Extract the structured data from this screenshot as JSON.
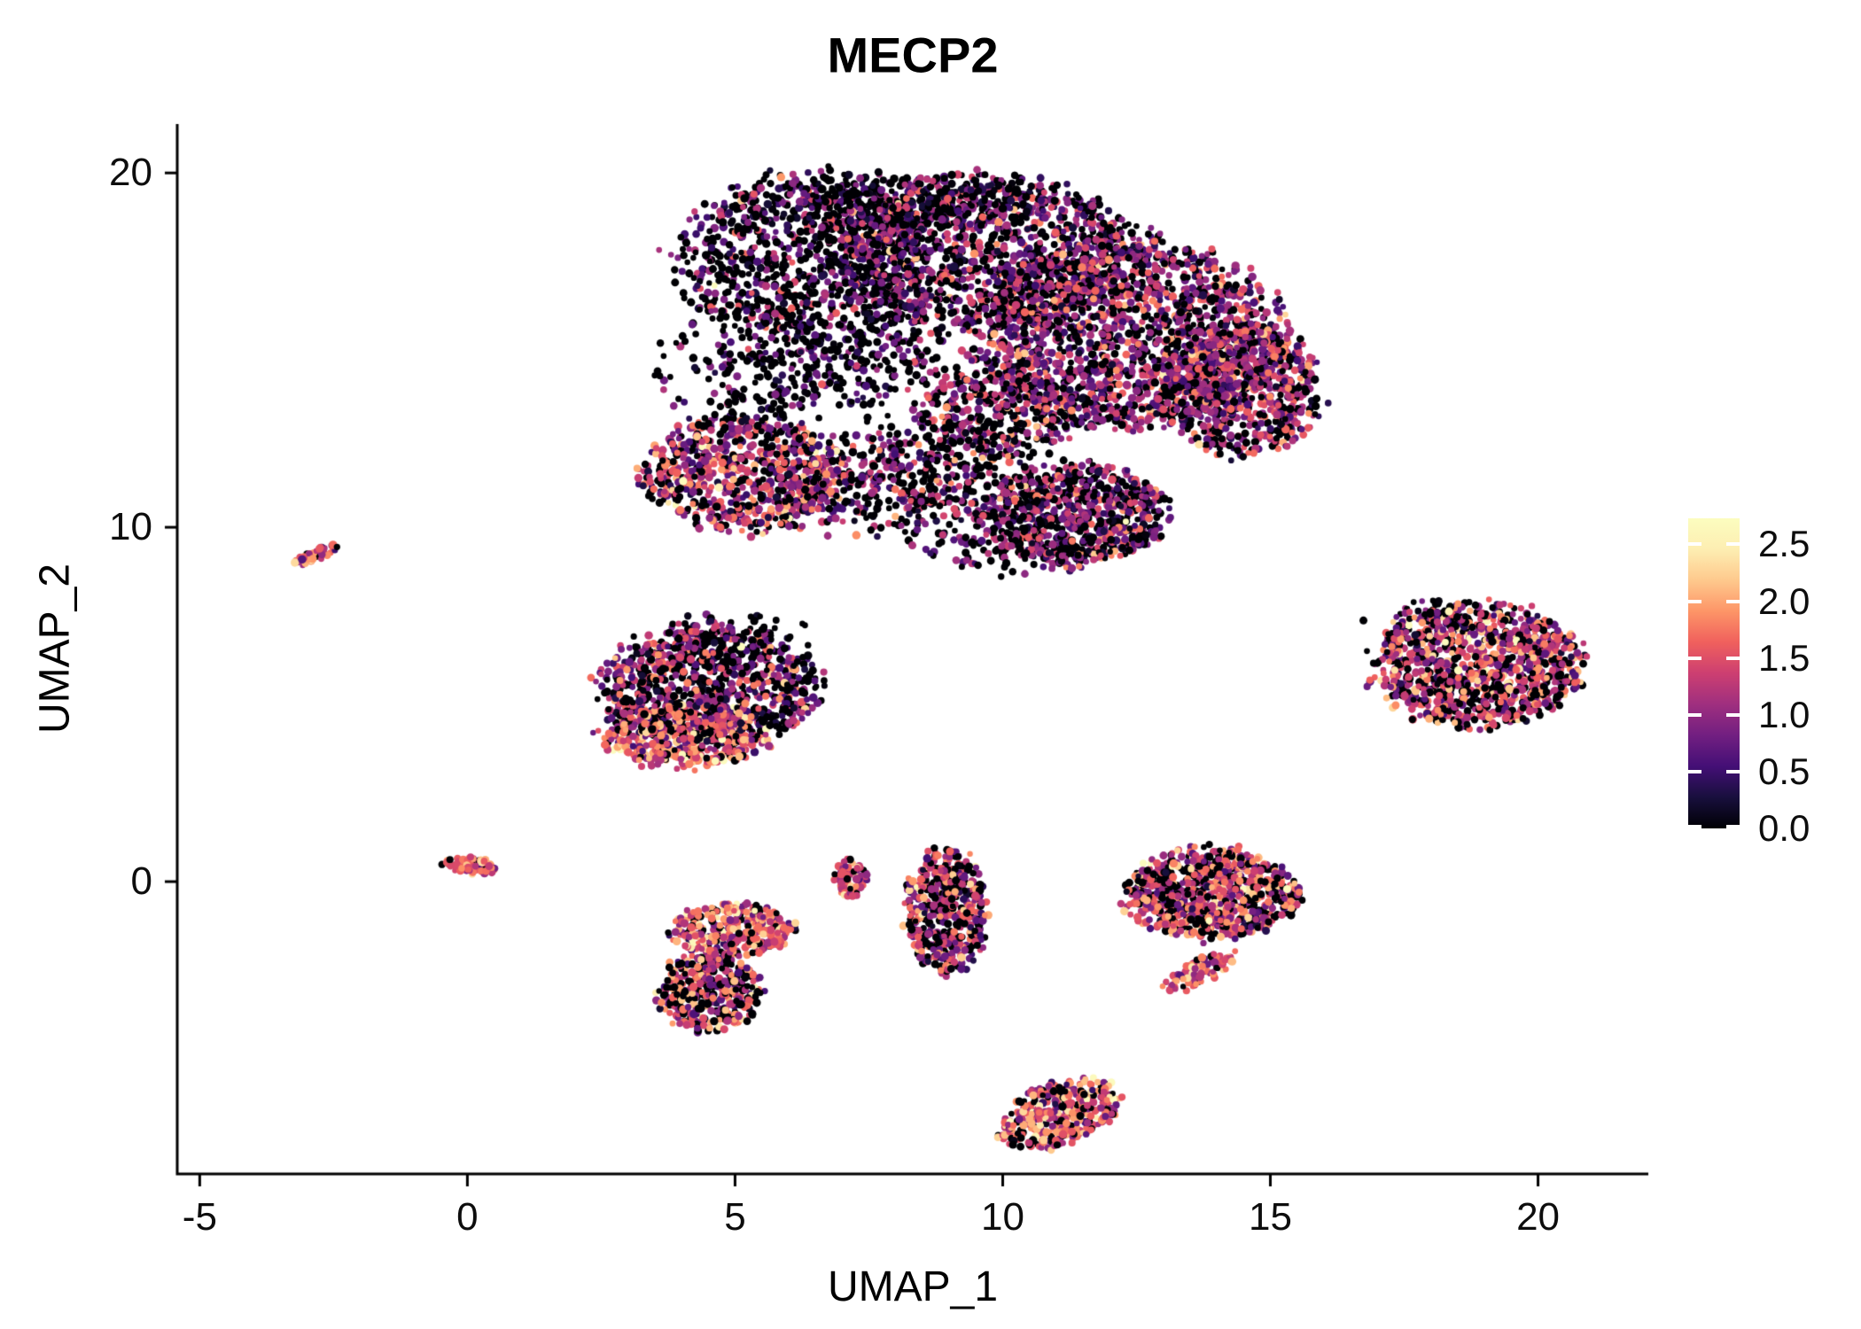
{
  "figure": {
    "background": "#ffffff",
    "text_color": "#000000",
    "axis_color": "#000000"
  },
  "chart_data": {
    "type": "scatter",
    "title": "MECP2",
    "xlabel": "UMAP_1",
    "ylabel": "UMAP_2",
    "xlim": [
      -5.42,
      22.06
    ],
    "ylim": [
      -8.25,
      21.38
    ],
    "grid": false,
    "x_ticks": [
      {
        "v": -5,
        "label": "-5"
      },
      {
        "v": 0,
        "label": "0"
      },
      {
        "v": 5,
        "label": "5"
      },
      {
        "v": 10,
        "label": "10"
      },
      {
        "v": 15,
        "label": "15"
      },
      {
        "v": 20,
        "label": "20"
      }
    ],
    "y_ticks": [
      {
        "v": 0,
        "label": "0"
      },
      {
        "v": 10,
        "label": "10"
      },
      {
        "v": 20,
        "label": "20"
      }
    ],
    "legend": {
      "position": "right",
      "scale_min": 0.0,
      "scale_max": 2.73,
      "ticks": [
        {
          "v": 2.5,
          "label": "2.5"
        },
        {
          "v": 2.0,
          "label": "2.0"
        },
        {
          "v": 1.5,
          "label": "1.5"
        },
        {
          "v": 1.0,
          "label": "1.0"
        },
        {
          "v": 0.5,
          "label": "0.5"
        },
        {
          "v": 0.0,
          "label": "0.0"
        }
      ],
      "colormap": "magma",
      "stops": [
        [
          0.0,
          "#000004"
        ],
        [
          0.1,
          "#180f3d"
        ],
        [
          0.2,
          "#440f76"
        ],
        [
          0.3,
          "#721f81"
        ],
        [
          0.4,
          "#9f2f7f"
        ],
        [
          0.5,
          "#cd3f71"
        ],
        [
          0.6,
          "#f0605d"
        ],
        [
          0.7,
          "#fd9567"
        ],
        [
          0.8,
          "#fec98d"
        ],
        [
          0.9,
          "#fdeeb2"
        ],
        [
          1.0,
          "#fcfdbf"
        ]
      ]
    },
    "points_total": 12885,
    "clusters": [
      {
        "name": "main-top-left",
        "cx": 6.3,
        "cy": 17.6,
        "rx": 2.4,
        "ry": 2.3,
        "rot": 0,
        "n": 850,
        "zero_frac": 0.52,
        "mean": 0.75,
        "sd": 0.5,
        "profile": "disk"
      },
      {
        "name": "main-top-rim",
        "cx": 8.2,
        "cy": 19.2,
        "rx": 2.2,
        "ry": 0.8,
        "rot": 0,
        "n": 300,
        "zero_frac": 0.55,
        "mean": 0.6,
        "sd": 0.45,
        "profile": "gauss"
      },
      {
        "name": "main-top-mid",
        "cx": 9.6,
        "cy": 17.8,
        "rx": 2.8,
        "ry": 2.1,
        "rot": 0,
        "n": 1200,
        "zero_frac": 0.36,
        "mean": 0.95,
        "sd": 0.5,
        "profile": "disk"
      },
      {
        "name": "main-right",
        "cx": 12.3,
        "cy": 15.5,
        "rx": 2.8,
        "ry": 2.7,
        "rot": 0,
        "n": 1700,
        "zero_frac": 0.28,
        "mean": 1.05,
        "sd": 0.5,
        "profile": "disk"
      },
      {
        "name": "main-right-lobe",
        "cx": 14.5,
        "cy": 13.9,
        "rx": 1.5,
        "ry": 1.8,
        "rot": 0,
        "n": 700,
        "zero_frac": 0.26,
        "mean": 1.15,
        "sd": 0.5,
        "profile": "disk"
      },
      {
        "name": "main-left-sparse",
        "cx": 5.6,
        "cy": 14.5,
        "rx": 1.8,
        "ry": 1.8,
        "rot": 0,
        "n": 260,
        "zero_frac": 0.6,
        "mean": 0.6,
        "sd": 0.4,
        "profile": "gauss"
      },
      {
        "name": "main-left-warm",
        "cx": 5.2,
        "cy": 11.5,
        "rx": 1.9,
        "ry": 1.6,
        "rot": 0,
        "n": 750,
        "zero_frac": 0.28,
        "mean": 1.25,
        "sd": 0.55,
        "profile": "disk"
      },
      {
        "name": "main-bottom-mid",
        "cx": 8.4,
        "cy": 11.3,
        "rx": 2.4,
        "ry": 1.6,
        "rot": 0,
        "n": 500,
        "zero_frac": 0.48,
        "mean": 0.95,
        "sd": 0.5,
        "profile": "gauss"
      },
      {
        "name": "main-bottom-lobe",
        "cx": 11.4,
        "cy": 10.4,
        "rx": 1.7,
        "ry": 1.4,
        "rot": 0,
        "n": 750,
        "zero_frac": 0.34,
        "mean": 0.95,
        "sd": 0.5,
        "profile": "disk"
      },
      {
        "name": "main-center-fill",
        "cx": 7.8,
        "cy": 15.0,
        "rx": 1.5,
        "ry": 1.5,
        "rot": 0,
        "n": 200,
        "zero_frac": 0.55,
        "mean": 0.7,
        "sd": 0.45,
        "profile": "gauss"
      },
      {
        "name": "main-bridge",
        "cx": 9.9,
        "cy": 13.2,
        "rx": 1.5,
        "ry": 1.2,
        "rot": 0,
        "n": 350,
        "zero_frac": 0.4,
        "mean": 1.0,
        "sd": 0.5,
        "profile": "disk"
      },
      {
        "name": "main-under-strays",
        "cx": 10.2,
        "cy": 9.3,
        "rx": 1.6,
        "ry": 0.6,
        "rot": 0,
        "n": 80,
        "zero_frac": 0.5,
        "mean": 0.8,
        "sd": 0.45,
        "profile": "gauss"
      },
      {
        "name": "streak-upper-left",
        "cx": -2.8,
        "cy": 9.25,
        "rx": 0.5,
        "ry": 0.15,
        "rot": 35,
        "n": 45,
        "zero_frac": 0.08,
        "mean": 1.5,
        "sd": 0.45,
        "profile": "disk"
      },
      {
        "name": "mid-left",
        "cx": 4.5,
        "cy": 5.5,
        "rx": 2.0,
        "ry": 1.7,
        "rot": 0,
        "n": 950,
        "zero_frac": 0.38,
        "mean": 1.05,
        "sd": 0.55,
        "profile": "disk"
      },
      {
        "name": "mid-left-warm",
        "cx": 4.1,
        "cy": 4.1,
        "rx": 1.6,
        "ry": 0.85,
        "rot": 0,
        "n": 420,
        "zero_frac": 0.12,
        "mean": 1.6,
        "sd": 0.5,
        "profile": "disk"
      },
      {
        "name": "mid-left-halo",
        "cx": 5.0,
        "cy": 6.9,
        "rx": 1.5,
        "ry": 0.7,
        "rot": 0,
        "n": 70,
        "zero_frac": 0.55,
        "mean": 0.7,
        "sd": 0.45,
        "profile": "gauss"
      },
      {
        "name": "right",
        "cx": 18.85,
        "cy": 6.1,
        "rx": 1.95,
        "ry": 1.7,
        "rot": 0,
        "n": 1050,
        "zero_frac": 0.3,
        "mean": 1.3,
        "sd": 0.55,
        "profile": "disk"
      },
      {
        "name": "right-halo",
        "cx": 17.9,
        "cy": 7.4,
        "rx": 1.0,
        "ry": 0.6,
        "rot": 0,
        "n": 60,
        "zero_frac": 0.6,
        "mean": 0.8,
        "sd": 0.45,
        "profile": "gauss"
      },
      {
        "name": "origin-small",
        "cx": 0.05,
        "cy": 0.45,
        "rx": 0.55,
        "ry": 0.22,
        "rot": -8,
        "n": 70,
        "zero_frac": 0.08,
        "mean": 1.5,
        "sd": 0.4,
        "profile": "disk"
      },
      {
        "name": "lower-left-top",
        "cx": 4.95,
        "cy": -1.35,
        "rx": 1.15,
        "ry": 0.75,
        "rot": 0,
        "n": 330,
        "zero_frac": 0.15,
        "mean": 1.6,
        "sd": 0.5,
        "profile": "disk"
      },
      {
        "name": "lower-left-bottom",
        "cx": 4.55,
        "cy": -3.1,
        "rx": 0.95,
        "ry": 1.15,
        "rot": 0,
        "n": 380,
        "zero_frac": 0.3,
        "mean": 1.3,
        "sd": 0.55,
        "profile": "disk"
      },
      {
        "name": "tiny-mid",
        "cx": 7.15,
        "cy": 0.1,
        "rx": 0.3,
        "ry": 0.55,
        "rot": 0,
        "n": 70,
        "zero_frac": 0.12,
        "mean": 1.4,
        "sd": 0.45,
        "profile": "disk"
      },
      {
        "name": "mid-vertical",
        "cx": 8.95,
        "cy": -0.8,
        "rx": 0.75,
        "ry": 1.75,
        "rot": 0,
        "n": 480,
        "zero_frac": 0.28,
        "mean": 1.25,
        "sd": 0.55,
        "profile": "disk"
      },
      {
        "name": "right-mid",
        "cx": 13.9,
        "cy": -0.35,
        "rx": 1.55,
        "ry": 1.25,
        "rot": 0,
        "n": 850,
        "zero_frac": 0.3,
        "mean": 1.35,
        "sd": 0.55,
        "profile": "disk"
      },
      {
        "name": "right-mid-tail",
        "cx": 13.7,
        "cy": -2.55,
        "rx": 0.85,
        "ry": 0.3,
        "rot": 38,
        "n": 90,
        "zero_frac": 0.1,
        "mean": 1.6,
        "sd": 0.4,
        "profile": "disk"
      },
      {
        "name": "bottom",
        "cx": 11.05,
        "cy": -6.55,
        "rx": 1.25,
        "ry": 0.8,
        "rot": 33,
        "n": 380,
        "zero_frac": 0.22,
        "mean": 1.5,
        "sd": 0.55,
        "profile": "disk"
      }
    ]
  }
}
